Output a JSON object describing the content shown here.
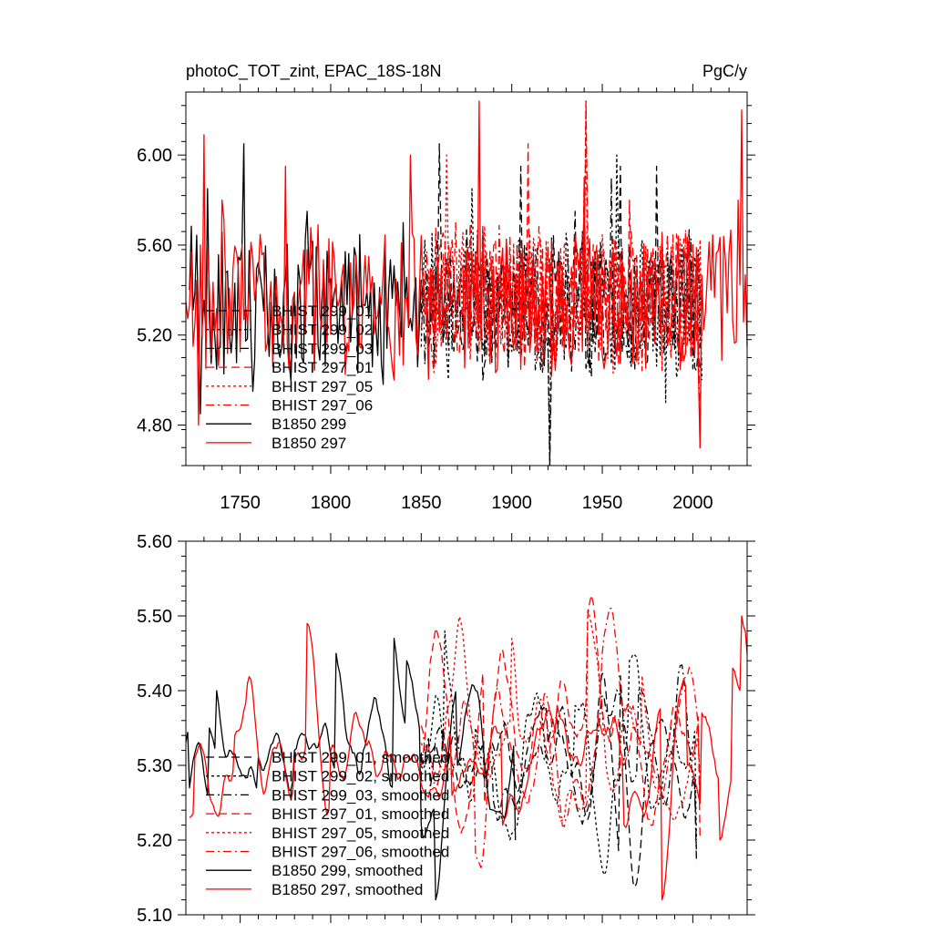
{
  "chart_data": [
    {
      "type": "line",
      "title": "photoC_TOT_zint, EPAC_18S-18N",
      "units": "PgC/y",
      "xlabel": "",
      "ylabel": "",
      "xlim": [
        1720,
        2030
      ],
      "ylim": [
        4.62,
        6.28
      ],
      "x_ticks": [
        1750,
        1800,
        1850,
        1900,
        1950,
        2000
      ],
      "y_ticks": [
        4.8,
        5.2,
        5.6,
        6.0
      ],
      "y_tick_labels": [
        "4.80",
        "5.20",
        "5.60",
        "6.00"
      ],
      "grid": false,
      "legend_position": "lower-left",
      "series": [
        {
          "name": "BHIST 299_01",
          "color": "#000000",
          "dash": "long-dash",
          "x_start": 1850,
          "x_end": 2005,
          "mean": 5.33,
          "amplitude": 0.28,
          "anchors": [
            [
              1850,
              5.3
            ],
            [
              1860,
              6.05
            ],
            [
              1884,
              5.0
            ],
            [
              1905,
              5.95
            ],
            [
              1921,
              4.62
            ],
            [
              1935,
              5.75
            ],
            [
              1960,
              5.95
            ],
            [
              1980,
              5.95
            ],
            [
              2005,
              5.1
            ]
          ]
        },
        {
          "name": "BHIST 299_02",
          "color": "#000000",
          "dash": "short-dash",
          "x_start": 1850,
          "x_end": 2005,
          "mean": 5.33,
          "amplitude": 0.28,
          "anchors": [
            [
              1853,
              5.25
            ],
            [
              1878,
              5.85
            ],
            [
              1921,
              4.62
            ],
            [
              1958,
              6.0
            ],
            [
              1985,
              4.9
            ],
            [
              2005,
              5.0
            ]
          ]
        },
        {
          "name": "BHIST 299_03",
          "color": "#000000",
          "dash": "dash-dot",
          "x_start": 1850,
          "x_end": 2005,
          "mean": 5.33,
          "amplitude": 0.28,
          "anchors": [
            [
              1855,
              5.3
            ],
            [
              1900,
              5.2
            ],
            [
              1955,
              5.9
            ],
            [
              2000,
              5.05
            ]
          ]
        },
        {
          "name": "BHIST 297_01",
          "color": "#ff0000",
          "dash": "long-dash",
          "x_start": 1850,
          "x_end": 2005,
          "mean": 5.36,
          "amplitude": 0.28,
          "anchors": [
            [
              1852,
              5.3
            ],
            [
              1909,
              6.05
            ],
            [
              1941,
              6.24
            ],
            [
              1965,
              5.8
            ],
            [
              2005,
              5.2
            ]
          ]
        },
        {
          "name": "BHIST 297_05",
          "color": "#ff0000",
          "dash": "short-dash",
          "x_start": 1850,
          "x_end": 2005,
          "mean": 5.36,
          "amplitude": 0.28,
          "anchors": [
            [
              1851,
              5.3
            ],
            [
              1864,
              6.0
            ],
            [
              1941,
              6.24
            ],
            [
              1999,
              5.1
            ]
          ]
        },
        {
          "name": "BHIST 297_06",
          "color": "#ff0000",
          "dash": "dash-dot",
          "x_start": 1850,
          "x_end": 2005,
          "mean": 5.36,
          "amplitude": 0.28,
          "anchors": [
            [
              1854,
              5.4
            ],
            [
              1940,
              5.9
            ],
            [
              2004,
              4.7
            ]
          ]
        },
        {
          "name": "B1850 299",
          "color": "#000000",
          "dash": "solid",
          "x_start": 1722,
          "x_end": 1850,
          "mean": 5.33,
          "amplitude": 0.3,
          "anchors": [
            [
              1722,
              5.4
            ],
            [
              1728,
              4.85
            ],
            [
              1732,
              5.85
            ],
            [
              1752,
              6.05
            ],
            [
              1757,
              4.95
            ],
            [
              1787,
              5.75
            ],
            [
              1800,
              5.45
            ],
            [
              1840,
              5.7
            ],
            [
              1849,
              5.25
            ]
          ]
        },
        {
          "name": "B1850 297",
          "color": "#ff0000",
          "dash": "solid",
          "x_start": 1720,
          "x_end": 2030,
          "mean": 5.35,
          "amplitude": 0.3,
          "anchors": [
            [
              1720,
              5.35
            ],
            [
              1727,
              4.8
            ],
            [
              1730,
              6.09
            ],
            [
              1740,
              5.8
            ],
            [
              1775,
              5.95
            ],
            [
              1835,
              5.0
            ],
            [
              1844,
              6.0
            ],
            [
              1882,
              6.24
            ],
            [
              1940,
              5.9
            ],
            [
              2004,
              4.7
            ],
            [
              2010,
              5.4
            ],
            [
              2025,
              5.8
            ],
            [
              2027,
              6.2
            ],
            [
              2030,
              5.15
            ]
          ]
        }
      ]
    },
    {
      "type": "line",
      "title": "",
      "xlabel": "",
      "ylabel": "",
      "xlim": [
        1720,
        2030
      ],
      "ylim": [
        5.1,
        5.6
      ],
      "x_ticks": [
        1750,
        1800,
        1850,
        1900,
        1950,
        2000
      ],
      "y_ticks": [
        5.1,
        5.2,
        5.3,
        5.4,
        5.5,
        5.6
      ],
      "y_tick_labels": [
        "5.10",
        "5.20",
        "5.30",
        "5.40",
        "5.50",
        "5.60"
      ],
      "grid": false,
      "legend_position": "lower-left",
      "series": [
        {
          "name": "BHIST 299_01, smoothed",
          "color": "#000000",
          "dash": "long-dash",
          "x_start": 1850,
          "x_end": 2002,
          "mean": 5.31,
          "amplitude": 0.05,
          "anchors": [
            [
              1850,
              5.3
            ],
            [
              1862,
              5.35
            ],
            [
              1885,
              5.28
            ],
            [
              1920,
              5.33
            ],
            [
              1960,
              5.42
            ],
            [
              1978,
              5.33
            ],
            [
              2002,
              5.18
            ]
          ]
        },
        {
          "name": "BHIST 299_02, smoothed",
          "color": "#000000",
          "dash": "short-dash",
          "x_start": 1850,
          "x_end": 2002,
          "mean": 5.31,
          "amplitude": 0.05,
          "anchors": [
            [
              1852,
              5.3
            ],
            [
              1863,
              5.48
            ],
            [
              1880,
              5.35
            ],
            [
              1935,
              5.38
            ],
            [
              1965,
              5.44
            ],
            [
              1985,
              5.3
            ],
            [
              2002,
              5.2
            ]
          ]
        },
        {
          "name": "BHIST 299_03, smoothed",
          "color": "#000000",
          "dash": "dash-dot",
          "x_start": 1850,
          "x_end": 2002,
          "mean": 5.31,
          "amplitude": 0.05,
          "anchors": [
            [
              1855,
              5.27
            ],
            [
              1890,
              5.25
            ],
            [
              1930,
              5.35
            ],
            [
              1970,
              5.4
            ],
            [
              2002,
              5.17
            ]
          ]
        },
        {
          "name": "BHIST 297_01, smoothed",
          "color": "#ff0000",
          "dash": "long-dash",
          "x_start": 1850,
          "x_end": 2004,
          "mean": 5.35,
          "amplitude": 0.05,
          "anchors": [
            [
              1850,
              5.3
            ],
            [
              1885,
              5.25
            ],
            [
              1942,
              5.5
            ],
            [
              1960,
              5.3
            ],
            [
              1990,
              5.38
            ],
            [
              2004,
              5.2
            ]
          ]
        },
        {
          "name": "BHIST 297_05, smoothed",
          "color": "#ff0000",
          "dash": "short-dash",
          "x_start": 1850,
          "x_end": 2004,
          "mean": 5.35,
          "amplitude": 0.05,
          "anchors": [
            [
              1850,
              5.33
            ],
            [
              1900,
              5.47
            ],
            [
              1942,
              5.51
            ],
            [
              1972,
              5.42
            ],
            [
              2004,
              5.28
            ]
          ]
        },
        {
          "name": "BHIST 297_06, smoothed",
          "color": "#ff0000",
          "dash": "dash-dot",
          "x_start": 1850,
          "x_end": 2004,
          "mean": 5.35,
          "amplitude": 0.05,
          "anchors": [
            [
              1852,
              5.32
            ],
            [
              1880,
              5.18
            ],
            [
              1950,
              5.45
            ],
            [
              2004,
              5.25
            ]
          ]
        },
        {
          "name": "B1850 299, smoothed",
          "color": "#000000",
          "dash": "solid",
          "x_start": 1720,
          "x_end": 1902,
          "mean": 5.32,
          "amplitude": 0.04,
          "anchors": [
            [
              1722,
              5.27
            ],
            [
              1733,
              5.35
            ],
            [
              1737,
              5.4
            ],
            [
              1760,
              5.31
            ],
            [
              1780,
              5.32
            ],
            [
              1803,
              5.45
            ],
            [
              1818,
              5.32
            ],
            [
              1835,
              5.47
            ],
            [
              1842,
              5.44
            ],
            [
              1850,
              5.22
            ],
            [
              1858,
              5.12
            ],
            [
              1870,
              5.3
            ],
            [
              1890,
              5.24
            ],
            [
              1902,
              5.2
            ]
          ]
        },
        {
          "name": "B1850 297, smoothed",
          "color": "#ff0000",
          "dash": "solid",
          "x_start": 1722,
          "x_end": 2030,
          "mean": 5.31,
          "amplitude": 0.04,
          "anchors": [
            [
              1722,
              5.23
            ],
            [
              1725,
              5.31
            ],
            [
              1747,
              5.34
            ],
            [
              1754,
              5.41
            ],
            [
              1780,
              5.31
            ],
            [
              1787,
              5.49
            ],
            [
              1800,
              5.32
            ],
            [
              1840,
              5.3
            ],
            [
              1867,
              5.26
            ],
            [
              1895,
              5.22
            ],
            [
              1925,
              5.38
            ],
            [
              1962,
              5.22
            ],
            [
              1983,
              5.12
            ],
            [
              1997,
              5.3
            ],
            [
              2005,
              5.37
            ],
            [
              2015,
              5.2
            ],
            [
              2022,
              5.43
            ],
            [
              2027,
              5.5
            ],
            [
              2029,
              5.48
            ]
          ]
        }
      ]
    }
  ]
}
